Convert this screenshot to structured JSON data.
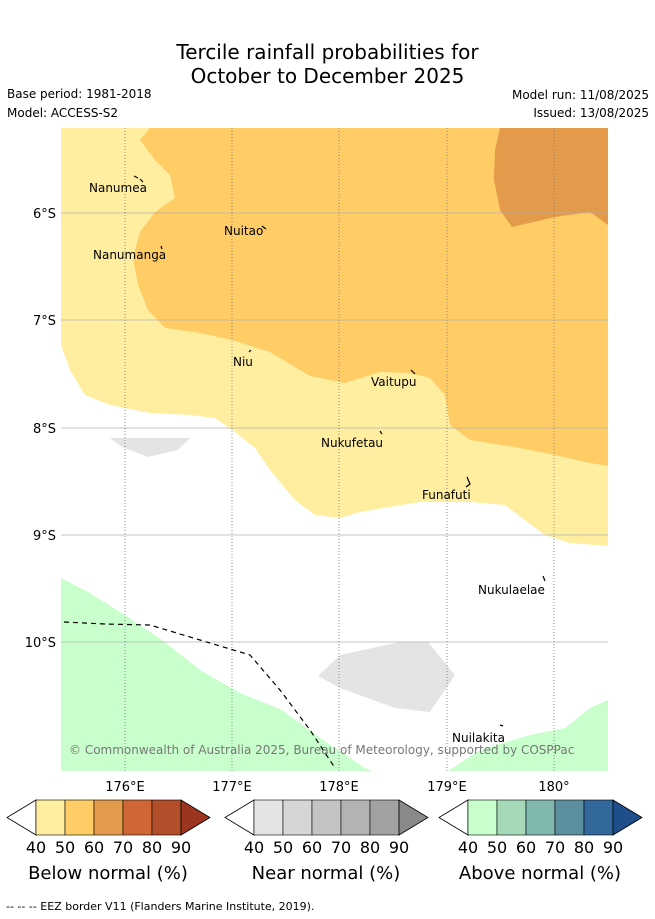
{
  "header": {
    "title_line1": "Tercile rainfall probabilities for",
    "title_line2": "October to December 2025",
    "base_period": "Base period: 1981-2018",
    "model": "Model: ACCESS-S2",
    "model_run": "Model run: 11/08/2025",
    "issued": "Issued: 13/08/2025"
  },
  "map": {
    "lat_labels": [
      "6°S",
      "7°S",
      "8°S",
      "9°S",
      "10°S"
    ],
    "lon_labels": [
      "176°E",
      "177°E",
      "178°E",
      "179°E",
      "180°"
    ],
    "places": [
      "Nanumea",
      "Nuitao",
      "Nanumanga",
      "Niu",
      "Vaitupu",
      "Nukufetau",
      "Funafuti",
      "Nukulaelae",
      "Nuilakita"
    ],
    "copyright": "© Commonwealth of Australia 2025, Bureau of Meteorology, supported by COSPPac"
  },
  "legends": [
    {
      "label": "Below normal (%)",
      "ticks": [
        "40",
        "50",
        "60",
        "70",
        "80",
        "90"
      ],
      "colors": [
        "#ffeea0",
        "#ffcc66",
        "#e39a4a",
        "#cf6634",
        "#b34e2a",
        "#9c3520"
      ]
    },
    {
      "label": "Near normal (%)",
      "ticks": [
        "40",
        "50",
        "60",
        "70",
        "80",
        "90"
      ],
      "colors": [
        "#e4e4e4",
        "#d6d6d6",
        "#c4c4c4",
        "#b3b3b3",
        "#a2a2a2",
        "#8a8a8a"
      ]
    },
    {
      "label": "Above normal (%)",
      "ticks": [
        "40",
        "50",
        "60",
        "70",
        "80",
        "90"
      ],
      "colors": [
        "#c8ffcc",
        "#a6d9b8",
        "#80b8b0",
        "#5b8fa0",
        "#33689c",
        "#1e4f8c"
      ]
    }
  ],
  "footer": {
    "eez_note": "--  --  -- EEZ border V11 (Flanders Marine Institute, 2019)."
  }
}
